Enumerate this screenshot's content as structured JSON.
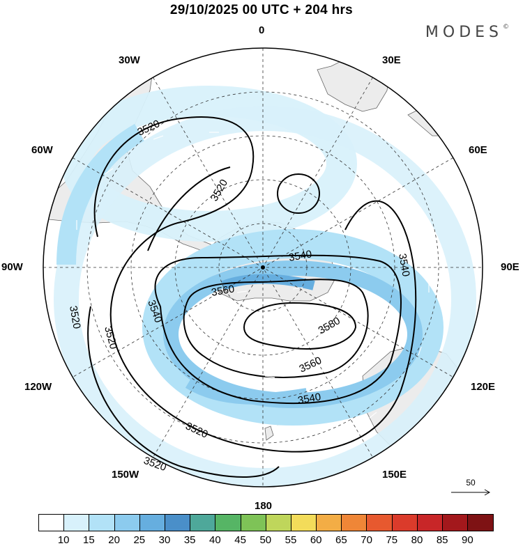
{
  "title": "29/10/2025  00 UTC  + 204 hrs",
  "brand": "MODES",
  "brand_mark": "©",
  "longitude_labels": {
    "n0": "0",
    "w30": "30W",
    "e30": "30E",
    "w60": "60W",
    "e60": "60E",
    "w90": "90W",
    "e90": "90E",
    "w120": "120W",
    "e120": "120E",
    "w150": "150W",
    "e150": "150E",
    "s180": "180"
  },
  "contour_labels": [
    "3520",
    "3520",
    "3520",
    "3520",
    "3520",
    "3520",
    "3540",
    "3540",
    "3540",
    "3540",
    "3560",
    "3560",
    "3580"
  ],
  "vector_key": "50",
  "colorbar": {
    "labels": [
      "10",
      "15",
      "20",
      "25",
      "30",
      "35",
      "40",
      "45",
      "50",
      "55",
      "60",
      "65",
      "70",
      "75",
      "80",
      "85",
      "90"
    ],
    "colors": [
      "#ffffff",
      "#d8f1fb",
      "#b2e2f7",
      "#8ccbee",
      "#66aedf",
      "#4a8fc9",
      "#4ea89a",
      "#56b565",
      "#7ec357",
      "#bfd65b",
      "#f3dc5a",
      "#f3ad45",
      "#ef8637",
      "#e7592f",
      "#db3b2b",
      "#c82628",
      "#a3181c",
      "#7e1214"
    ]
  },
  "colors": {
    "land": "#ececec",
    "coast": "#666666",
    "contour": "#000000",
    "grid": "#333333",
    "arrow": "#ffffff"
  }
}
